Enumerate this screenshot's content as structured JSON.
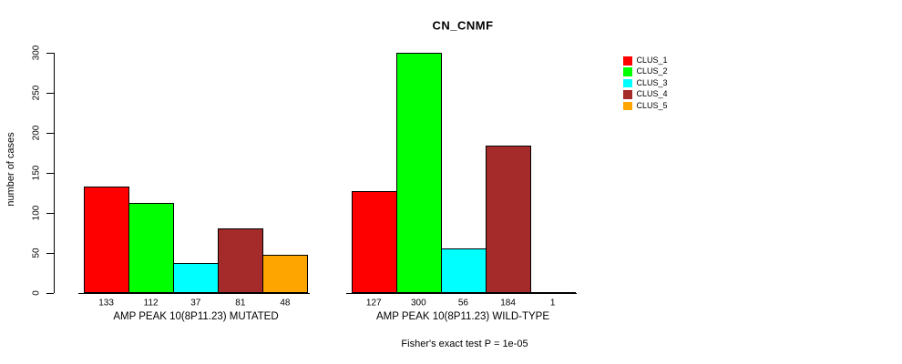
{
  "chart_data": {
    "type": "bar",
    "title": "CN_CNMF",
    "ylabel": "number of cases",
    "xlabel": "",
    "ylim": [
      0,
      300
    ],
    "yticks": [
      0,
      50,
      100,
      150,
      200,
      250,
      300
    ],
    "grid": false,
    "legend_position": "right",
    "categories": [
      "AMP PEAK 10(8P11.23) MUTATED",
      "AMP PEAK 10(8P11.23) WILD-TYPE"
    ],
    "series": [
      {
        "name": "CLUS_1",
        "color": "#FF0000",
        "values": [
          133,
          127
        ]
      },
      {
        "name": "CLUS_2",
        "color": "#00FF00",
        "values": [
          112,
          300
        ]
      },
      {
        "name": "CLUS_3",
        "color": "#00FFFF",
        "values": [
          37,
          56
        ]
      },
      {
        "name": "CLUS_4",
        "color": "#A52A2A",
        "values": [
          81,
          184
        ]
      },
      {
        "name": "CLUS_5",
        "color": "#FFA500",
        "values": [
          48,
          1
        ]
      }
    ],
    "bar_value_labels": [
      [
        133,
        112,
        37,
        81,
        48
      ],
      [
        127,
        300,
        56,
        184,
        1
      ]
    ],
    "footer": "Fisher's exact test P = 1e-05",
    "axis_color": "#000000",
    "background_color": "#FFFFFF"
  }
}
